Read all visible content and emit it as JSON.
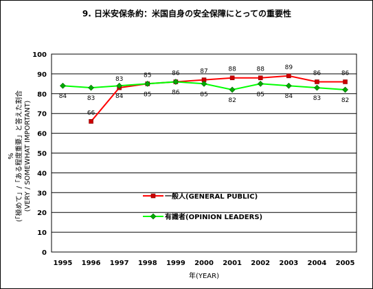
{
  "chart_data": {
    "type": "line",
    "title": "9. 日米安保条約：米国自身の安全保障にとっての重要性",
    "xlabel": "年(YEAR)",
    "ylabel": [
      "%",
      "(「極めて」/「ある程度重要」と答えた割合",
      "(VERY / SOMEWHAT IMPORTANT)"
    ],
    "categories": [
      "1995",
      "1996",
      "1997",
      "1998",
      "1999",
      "2000",
      "2001",
      "2002",
      "2003",
      "2004",
      "2005"
    ],
    "ylim": [
      0,
      100
    ],
    "yticks": [
      "0",
      "10",
      "20",
      "30",
      "40",
      "50",
      "60",
      "70",
      "80",
      "90",
      "100"
    ],
    "grid": "horizontal",
    "legend_position": "center-right",
    "series": [
      {
        "name": "一般人(GENERAL PUBLIC)",
        "color": "#ff0000",
        "marker_color": "#cc0000",
        "marker": "square",
        "values": [
          null,
          66,
          83,
          85,
          86,
          87,
          88,
          88,
          89,
          86,
          86
        ],
        "labels": [
          "",
          "66",
          "83",
          "85",
          "86",
          "87",
          "88",
          "88",
          "89",
          "86",
          "86"
        ]
      },
      {
        "name": "有識者(OPINION LEADERS)",
        "color": "#00ff00",
        "marker_color": "#00aa00",
        "marker": "diamond",
        "values": [
          84,
          83,
          84,
          85,
          86,
          85,
          82,
          85,
          84,
          83,
          82
        ],
        "labels": [
          "84",
          "83",
          "84",
          "85",
          "86",
          "85",
          "82",
          "85",
          "84",
          "83",
          "82"
        ]
      }
    ]
  }
}
